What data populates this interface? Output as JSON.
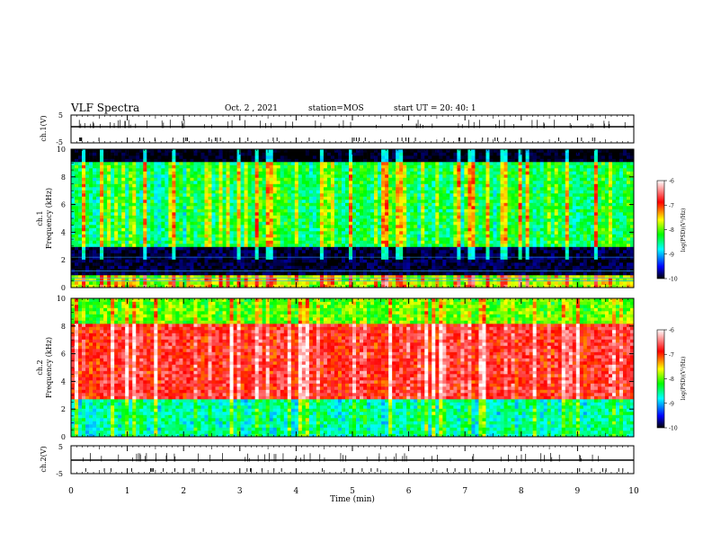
{
  "header": {
    "title": "VLF Spectra",
    "date": "Oct. 2 , 2021",
    "station": "station=MOS",
    "start_ut": "start UT =  20: 40: 1"
  },
  "chart_data": {
    "type": "heatmap",
    "x": {
      "label": "Time (min)",
      "range": [
        0,
        10
      ],
      "ticks": [
        "0",
        "1",
        "2",
        "3",
        "4",
        "5",
        "6",
        "7",
        "8",
        "9",
        "10"
      ]
    },
    "panels": [
      {
        "id": "ch1_volt",
        "type": "line",
        "ylabel": "ch.1(V)",
        "ylim": [
          -5,
          5
        ],
        "ticks": [
          "5",
          "-5"
        ],
        "baseline": -2
      },
      {
        "id": "ch1_spec",
        "type": "heatmap",
        "ylabel": "ch.1\nFrequency (kHz)",
        "ylim": [
          0,
          10
        ],
        "ticks": [
          "0",
          "2",
          "4",
          "6",
          "8",
          "10"
        ],
        "z_label": "log(PSD)(V²/Hz)",
        "z_range": [
          -10,
          -6
        ],
        "z_ticks": [
          "-6",
          "-7",
          "-8",
          "-9",
          "-10"
        ],
        "description_bands": [
          {
            "from": 0,
            "to": 0.8,
            "level": -7.8
          },
          {
            "from": 0.8,
            "to": 3,
            "level": -9.9
          },
          {
            "from": 3,
            "to": 9.1,
            "level": -8.4
          },
          {
            "from": 9.1,
            "to": 10,
            "level": -10
          }
        ]
      },
      {
        "id": "ch2_spec",
        "type": "heatmap",
        "ylabel": "ch.2\nFrequency (kHz)",
        "ylim": [
          0,
          10
        ],
        "ticks": [
          "0",
          "2",
          "4",
          "6",
          "8",
          "10"
        ],
        "z_label": "log(PSD)(V²/Hz)",
        "z_range": [
          -10,
          -6
        ],
        "z_ticks": [
          "-6",
          "-7",
          "-8",
          "-9",
          "-10"
        ],
        "description_bands": [
          {
            "from": 0,
            "to": 2.8,
            "level": -8.6
          },
          {
            "from": 2.8,
            "to": 8.2,
            "level": -6.8
          },
          {
            "from": 8.2,
            "to": 10,
            "level": -8.0
          }
        ]
      },
      {
        "id": "ch2_volt",
        "type": "line",
        "ylabel": "ch.2(V)",
        "ylim": [
          -5,
          5
        ],
        "ticks": [
          "5",
          "-5"
        ],
        "baseline": -2
      }
    ],
    "colormap": [
      "#000000",
      "#00008b",
      "#0000ff",
      "#00c0ff",
      "#00ff80",
      "#c0ff00",
      "#ffff00",
      "#ff8000",
      "#ff0000",
      "#ffffff"
    ]
  }
}
